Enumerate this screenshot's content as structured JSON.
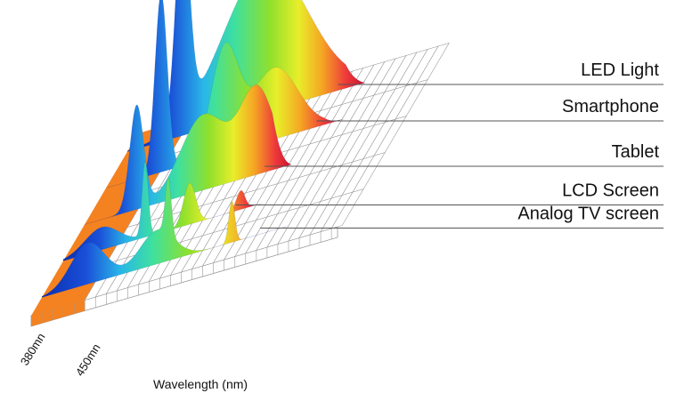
{
  "chart_data": {
    "type": "area",
    "title": "",
    "xlabel": "Wavelength (nm)",
    "ylabel": "",
    "x_ticks": [
      "380mn",
      "450mn"
    ],
    "series": [
      {
        "name": "LED Light",
        "peaks": [
          {
            "nm": 452,
            "h": 1.0,
            "w": 9
          },
          {
            "nm": 560,
            "h": 0.72,
            "w": 55
          }
        ],
        "tail": 690
      },
      {
        "name": "Smartphone",
        "peaks": [
          {
            "nm": 452,
            "h": 0.95,
            "w": 8
          },
          {
            "nm": 535,
            "h": 0.55,
            "w": 18
          },
          {
            "nm": 600,
            "h": 0.38,
            "w": 30
          }
        ],
        "tail": 690
      },
      {
        "name": "Tablet",
        "peaks": [
          {
            "nm": 448,
            "h": 0.55,
            "w": 9
          },
          {
            "nm": 535,
            "h": 0.4,
            "w": 30
          },
          {
            "nm": 605,
            "h": 0.45,
            "w": 22
          }
        ],
        "tail": 650
      },
      {
        "name": "LCD Screen",
        "peaks": [
          {
            "nm": 430,
            "h": 0.12,
            "w": 22
          },
          {
            "nm": 487,
            "h": 0.4,
            "w": 4
          },
          {
            "nm": 545,
            "h": 0.22,
            "w": 8
          },
          {
            "nm": 612,
            "h": 0.1,
            "w": 6
          }
        ],
        "tail": 640
      },
      {
        "name": "Analog TV screen",
        "peaks": [
          {
            "nm": 440,
            "h": 0.22,
            "w": 22
          },
          {
            "nm": 530,
            "h": 0.18,
            "w": 22
          },
          {
            "nm": 545,
            "h": 0.3,
            "w": 4
          },
          {
            "nm": 628,
            "h": 0.22,
            "w": 4
          }
        ],
        "tail": 700
      }
    ],
    "colors": {
      "uv_band": "#f58220",
      "grid": "#9a9a9a",
      "labels": "#111111"
    }
  }
}
